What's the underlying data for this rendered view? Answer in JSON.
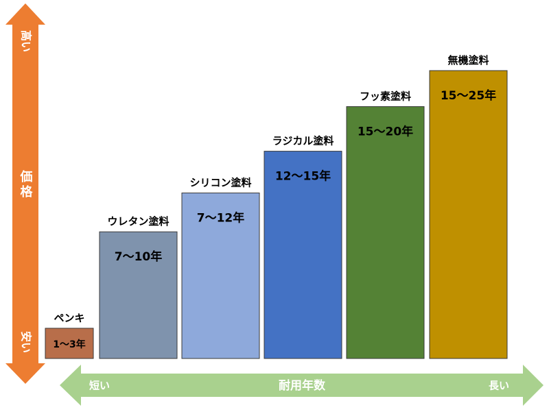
{
  "chart_data": {
    "type": "bar",
    "categories": [
      "ペンキ",
      "ウレタン塗料",
      "シリコン塗料",
      "ラジカル塗料",
      "フッ素塗料",
      "無機塗料"
    ],
    "value_labels": [
      "1～3年",
      "7～10年",
      "7～12年",
      "12～15年",
      "15～20年",
      "15～25年"
    ],
    "values": [
      1,
      2,
      3,
      4,
      5,
      6
    ],
    "ylim": [
      0,
      6.2
    ],
    "y_axis": {
      "top_label": "高い",
      "middle_label": "価格",
      "bottom_label": "安い"
    },
    "x_axis": {
      "left_label": "短い",
      "middle_label": "耐用年数",
      "right_label": "長い"
    },
    "colors": [
      "#B86E4A",
      "#7F93AD",
      "#8EA9DB",
      "#4472C4",
      "#548235",
      "#BF9000"
    ],
    "axis_colors": {
      "y_arrow": "#ED7D31",
      "x_arrow": "#A9D18E"
    },
    "grid": false,
    "legend": "none"
  }
}
